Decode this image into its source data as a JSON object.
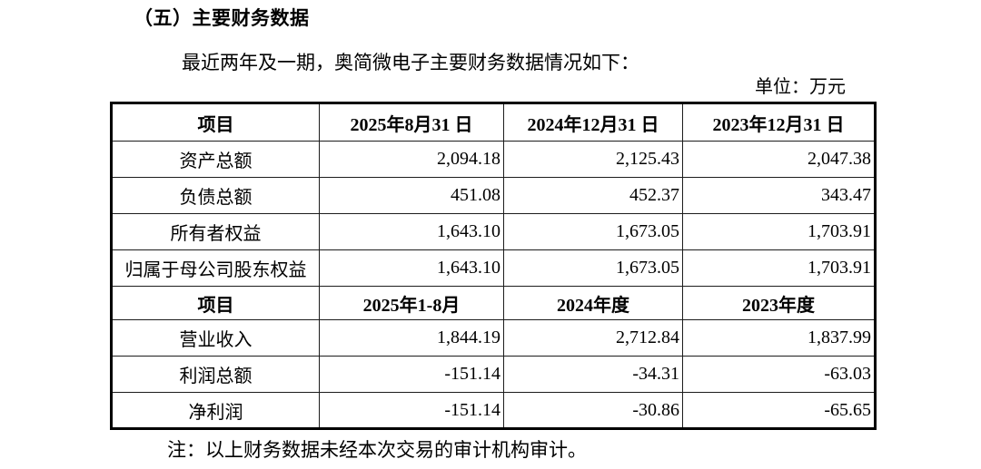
{
  "document": {
    "heading": "（五）主要财务数据",
    "intro": "最近两年及一期，奥简微电子主要财务数据情况如下：",
    "unit_label": "单位：万元",
    "note": "注：以上财务数据未经本次交易的审计机构审计。"
  },
  "table": {
    "sections": [
      {
        "header": [
          "项目",
          "2025年8月31 日",
          "2024年12月31 日",
          "2023年12月31 日"
        ],
        "rows": [
          [
            "资产总额",
            "2,094.18",
            "2,125.43",
            "2,047.38"
          ],
          [
            "负债总额",
            "451.08",
            "452.37",
            "343.47"
          ],
          [
            "所有者权益",
            "1,643.10",
            "1,673.05",
            "1,703.91"
          ],
          [
            "归属于母公司股东权益",
            "1,643.10",
            "1,673.05",
            "1,703.91"
          ]
        ]
      },
      {
        "header": [
          "项目",
          "2025年1-8月",
          "2024年度",
          "2023年度"
        ],
        "rows": [
          [
            "营业收入",
            "1,844.19",
            "2,712.84",
            "1,837.99"
          ],
          [
            "利润总额",
            "-151.14",
            "-34.31",
            "-63.03"
          ],
          [
            "净利润",
            "-151.14",
            "-30.86",
            "-65.65"
          ]
        ]
      }
    ]
  },
  "colors": {
    "text": "#000000",
    "border": "#1c1c1c",
    "background": "#ffffff"
  }
}
